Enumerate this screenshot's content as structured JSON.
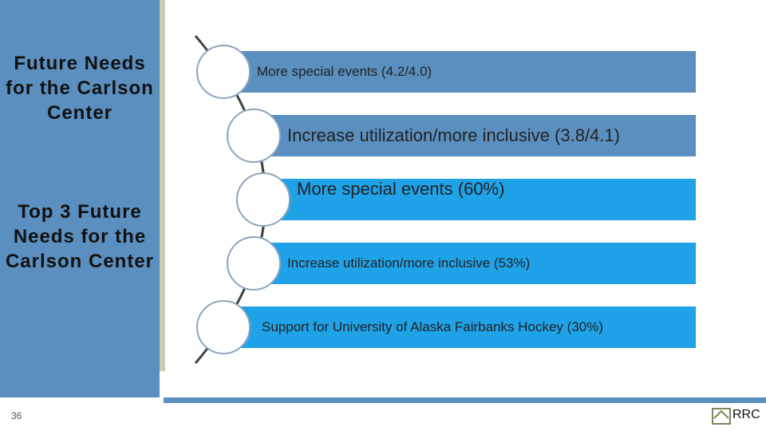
{
  "sidebar": {
    "title": "Future Needs for the Carlson Center",
    "subtitle": "Top 3 Future Needs for the Carlson Center"
  },
  "items": [
    "More special events (4.2/4.0)",
    "Increase utilization/more inclusive (3.8/4.1)",
    "More special events (60%)",
    "Increase utilization/more inclusive (53%)",
    "Support for University of Alaska Fairbanks Hockey (30%)"
  ],
  "footer": {
    "page_number": "36",
    "logo": "RRC"
  }
}
